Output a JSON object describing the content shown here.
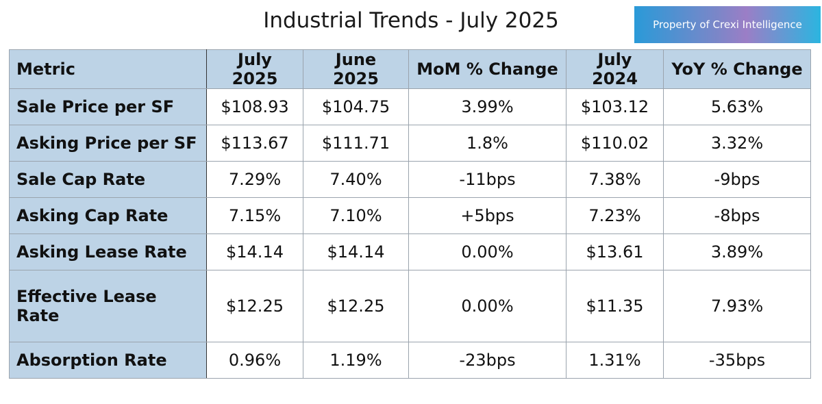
{
  "title": "Industrial Trends - July 2025",
  "badge": "Property of Crexi Intelligence",
  "colors": {
    "header_bg": "#bdd3e6",
    "metric_bg": "#bdd3e6",
    "border": "#9aa3ad"
  },
  "chart_data": {
    "type": "table",
    "title": "Industrial Trends - July 2025",
    "columns": [
      "Metric",
      "July 2025",
      "June 2025",
      "MoM % Change",
      "July 2024",
      "YoY % Change"
    ],
    "rows": [
      [
        "Sale Price per SF",
        "$108.93",
        "$104.75",
        "3.99%",
        "$103.12",
        "5.63%"
      ],
      [
        "Asking Price per SF",
        "$113.67",
        "$111.71",
        "1.8%",
        "$110.02",
        "3.32%"
      ],
      [
        "Sale Cap Rate",
        "7.29%",
        "7.40%",
        "-11bps",
        "7.38%",
        "-9bps"
      ],
      [
        "Asking Cap Rate",
        "7.15%",
        "7.10%",
        "+5bps",
        "7.23%",
        "-8bps"
      ],
      [
        "Asking Lease Rate",
        "$14.14",
        "$14.14",
        "0.00%",
        "$13.61",
        "3.89%"
      ],
      [
        "Effective Lease Rate",
        "$12.25",
        "$12.25",
        "0.00%",
        "$11.35",
        "7.93%"
      ],
      [
        "Absorption Rate",
        "0.96%",
        "1.19%",
        "-23bps",
        "1.31%",
        "-35bps"
      ]
    ]
  }
}
